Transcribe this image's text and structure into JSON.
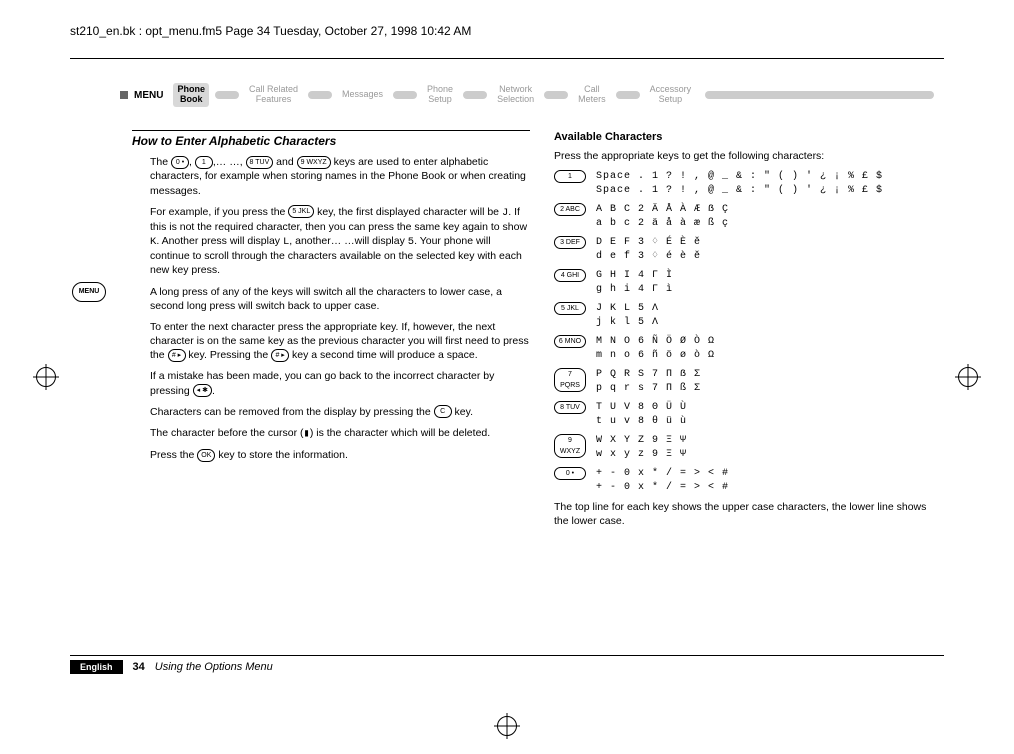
{
  "header": "st210_en.bk : opt_menu.fm5  Page 34  Tuesday, October 27, 1998  10:42 AM",
  "menu": {
    "label": "MENU",
    "tabs": [
      {
        "l1": "Phone",
        "l2": "Book",
        "active": true
      },
      {
        "l1": "Call Related",
        "l2": "Features",
        "active": false
      },
      {
        "l1": "Messages",
        "l2": "",
        "active": false
      },
      {
        "l1": "Phone",
        "l2": "Setup",
        "active": false
      },
      {
        "l1": "Network",
        "l2": "Selection",
        "active": false
      },
      {
        "l1": "Call",
        "l2": "Meters",
        "active": false
      },
      {
        "l1": "Accessory",
        "l2": "Setup",
        "active": false
      }
    ]
  },
  "left": {
    "title": "How to Enter Alphabetic Characters",
    "p1a": "The ",
    "k_0": "0 •",
    "p1b": ", ",
    "k_1": "1",
    "p1c": ",… …, ",
    "k_8": "8 TUV",
    "p1d": " and ",
    "k_9": "9 WXYZ",
    "p1e": " keys are used to enter alphabetic characters, for example when storing names in the Phone Book or when creating messages.",
    "p2a": "For example, if you press the ",
    "k_5": "5 JKL",
    "p2b": " key, the first displayed character will be ",
    "j": "J",
    "p2c": ". If this is not the required character, then you can press the same key again to show ",
    "k": "K",
    "p2d": ". Another press will display ",
    "l": "L",
    "p2e": ", another…  …will display ",
    "five": "5",
    "p2f": ". Your phone will continue to scroll through the characters available on the selected key with each new key press.",
    "p3": "A long press of any of the keys will switch all the characters to lower case, a second long press will switch back to upper case.",
    "p4a": "To enter the next character press the appropriate key. If, however, the next character is on the same key as the previous character you will first need to press the ",
    "k_hash": "# ▸",
    "p4b": " key. Pressing the ",
    "p4c": " key a second time will produce a space.",
    "p5a": "If a mistake has been made, you can go back to the incorrect character by pressing ",
    "k_star": "◂ ✱",
    "p5b": ".",
    "p6a": "Characters can be removed from the display by pressing the ",
    "k_c": "C",
    "p6b": " key.",
    "p7a": "The character before the cursor (",
    "cursor": "▮",
    "p7b": ") is the character which will be deleted.",
    "p8a": "Press the ",
    "k_ok": "OK",
    "p8b": " key to store the information."
  },
  "right": {
    "title": "Available Characters",
    "intro": "Press the appropriate keys to get the following characters:",
    "rows": [
      {
        "key": "1",
        "u": "Space . 1 ? ! , @ _ & : \" ( ) ' ¿ ¡ % £ $",
        "l": "Space . 1 ? ! , @ _ & : \" ( ) ' ¿ ¡ % £ $"
      },
      {
        "key": "2 ABC",
        "u": "A B C 2 Ä Å À Æ ẞ Ç",
        "l": "a b c 2 ä å à æ ß ç"
      },
      {
        "key": "3 DEF",
        "u": "D E F 3 ♢ É È ĕ",
        "l": "d e f 3 ♢ é è ĕ"
      },
      {
        "key": "4 GHI",
        "u": "G H I 4 Γ Ì",
        "l": "g h i 4 Γ ì"
      },
      {
        "key": "5 JKL",
        "u": "J K L 5 Λ",
        "l": "j k l 5 Λ"
      },
      {
        "key": "6 MNO",
        "u": "M N O 6 Ñ Ö Ø Ò Ω",
        "l": "m n o 6 ñ ö ø ò Ω"
      },
      {
        "key": "7 PQRS",
        "u": "P Q R S 7 Π ẞ Σ",
        "l": "p q r s 7 Π ß Σ"
      },
      {
        "key": "8 TUV",
        "u": "T U V 8 Θ Ü Ù",
        "l": "t u v 8 θ ü ù"
      },
      {
        "key": "9 WXYZ",
        "u": "W X Y Z 9 Ξ Ψ",
        "l": "w x y z 9 Ξ Ψ"
      },
      {
        "key": "0 •",
        "u": "+ - 0 x * / = > < #",
        "l": "+ - 0 x * / = > < #"
      }
    ],
    "note": "The top line for each key shows the upper case characters, the lower line shows the lower case."
  },
  "badge": "MENU",
  "footer": {
    "lang": "English",
    "page": "34",
    "title": "Using the Options Menu"
  }
}
